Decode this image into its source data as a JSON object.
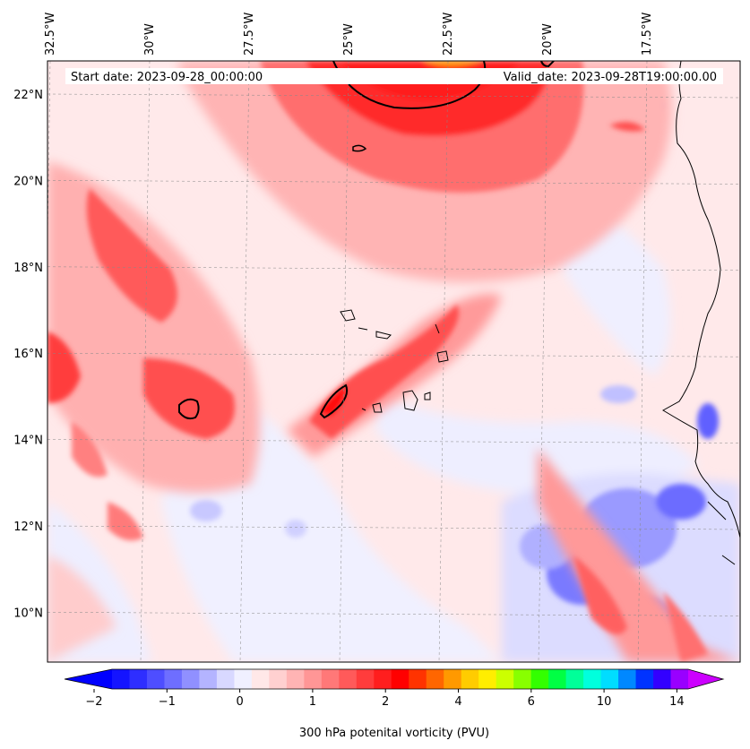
{
  "header": {
    "start_date": "Start date: 2023-09-28_00:00:00",
    "valid_date": "Valid_date: 2023-09-28T19:00:00.00"
  },
  "map": {
    "lon_ticks": [
      {
        "lon": -32.5,
        "label": "32.5°W"
      },
      {
        "lon": -30.0,
        "label": "30°W"
      },
      {
        "lon": -27.5,
        "label": "27.5°W"
      },
      {
        "lon": -25.0,
        "label": "25°W"
      },
      {
        "lon": -22.5,
        "label": "22.5°W"
      },
      {
        "lon": -20.0,
        "label": "20°W"
      },
      {
        "lon": -17.5,
        "label": "17.5°W"
      }
    ],
    "lat_ticks": [
      {
        "lat": 22,
        "label": "22°N"
      },
      {
        "lat": 20,
        "label": "20°N"
      },
      {
        "lat": 18,
        "label": "18°N"
      },
      {
        "lat": 16,
        "label": "16°N"
      },
      {
        "lat": 14,
        "label": "14°N"
      },
      {
        "lat": 12,
        "label": "12°N"
      },
      {
        "lat": 10,
        "label": "10°N"
      }
    ]
  },
  "colorbar": {
    "label": "300 hPa potenital vorticity (PVU)",
    "tick_labels": [
      "−2",
      "−1",
      "0",
      "1",
      "2",
      "4",
      "6",
      "10",
      "14"
    ],
    "colors": [
      "#1414ff",
      "#2e2eff",
      "#4e4eff",
      "#6e6eff",
      "#9090ff",
      "#b4b4ff",
      "#d8d8ff",
      "#f0f0ff",
      "#ffe8e8",
      "#ffd0d0",
      "#ffb4b4",
      "#ff9696",
      "#ff7878",
      "#ff5a5a",
      "#ff3c3c",
      "#ff1e1e",
      "#ff0000",
      "#ff3300",
      "#ff6600",
      "#ff9900",
      "#ffcc00",
      "#ffee00",
      "#ccff00",
      "#88ff00",
      "#33ff00",
      "#00ff44",
      "#00ff99",
      "#00ffdd",
      "#00ddff",
      "#0088ff",
      "#0033ff",
      "#3300ff",
      "#9900ff"
    ],
    "low_color": "#0000ff",
    "high_color": "#cc00ff"
  }
}
